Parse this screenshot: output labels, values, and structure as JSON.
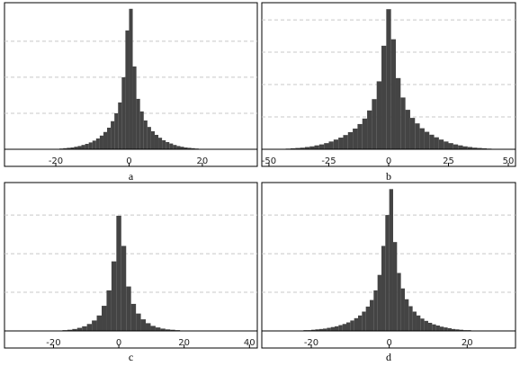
{
  "chart_data": [
    {
      "type": "histogram",
      "caption": "a",
      "color": "#444444",
      "grid": true,
      "bins": [
        -20,
        -19,
        -18,
        -17,
        -16,
        -15,
        -14,
        -13,
        -12,
        -11,
        -10,
        -9,
        -8,
        -7,
        -6,
        -5,
        -4,
        -3,
        -2,
        -1,
        0,
        1,
        2,
        3,
        4,
        5,
        6,
        7,
        8,
        9,
        10,
        11,
        12,
        13,
        14,
        15,
        16,
        17,
        18,
        19,
        20
      ],
      "values": [
        0.01,
        0.02,
        0.03,
        0.04,
        0.05,
        0.07,
        0.09,
        0.12,
        0.15,
        0.19,
        0.24,
        0.3,
        0.38,
        0.48,
        0.6,
        0.78,
        1.0,
        1.3,
        2.0,
        3.3,
        3.9,
        2.3,
        1.4,
        1.05,
        0.8,
        0.62,
        0.5,
        0.4,
        0.32,
        0.25,
        0.2,
        0.16,
        0.12,
        0.09,
        0.07,
        0.05,
        0.04,
        0.03,
        0.02,
        0.01
      ],
      "xlim": [
        -34,
        35
      ],
      "xticks": [
        -20,
        0,
        20
      ],
      "ylim": [
        0,
        4.07
      ],
      "yticks": [
        1,
        2,
        3
      ]
    },
    {
      "type": "histogram",
      "caption": "b",
      "color": "#444444",
      "grid": true,
      "bins": [
        -45,
        -43,
        -41,
        -39,
        -37,
        -35,
        -33,
        -31,
        -29,
        -27,
        -25,
        -23,
        -21,
        -19,
        -17,
        -15,
        -13,
        -11,
        -9,
        -7,
        -5,
        -3,
        -1,
        1,
        3,
        5,
        7,
        9,
        11,
        13,
        15,
        17,
        19,
        21,
        23,
        25,
        27,
        29,
        31,
        33,
        35,
        37,
        39,
        41,
        43,
        45
      ],
      "values": [
        0.01,
        0.02,
        0.03,
        0.04,
        0.05,
        0.07,
        0.09,
        0.12,
        0.15,
        0.19,
        0.24,
        0.3,
        0.36,
        0.44,
        0.53,
        0.64,
        0.78,
        0.95,
        1.2,
        1.55,
        2.1,
        3.2,
        4.33,
        3.4,
        2.2,
        1.6,
        1.22,
        0.97,
        0.8,
        0.65,
        0.54,
        0.45,
        0.37,
        0.3,
        0.24,
        0.19,
        0.15,
        0.12,
        0.09,
        0.07,
        0.05,
        0.04,
        0.03,
        0.02,
        0.01
      ],
      "xlim": [
        -53,
        53
      ],
      "xticks": [
        -50,
        -25,
        0,
        25,
        50
      ],
      "ylim": [
        0,
        4.53
      ],
      "yticks": [
        1,
        2,
        3,
        4
      ]
    },
    {
      "type": "histogram",
      "caption": "c",
      "color": "#444444",
      "grid": true,
      "bins": [
        -18.75,
        -17.25,
        -15.75,
        -14.25,
        -12.75,
        -11.25,
        -9.75,
        -8.25,
        -6.75,
        -5.25,
        -3.75,
        -2.25,
        -0.75,
        0.75,
        2.25,
        3.75,
        5.25,
        6.75,
        8.25,
        9.75,
        11.25,
        12.75,
        14.25,
        15.75,
        17.25,
        18.75,
        20.25,
        21.75
      ],
      "values": [
        0.01,
        0.02,
        0.03,
        0.05,
        0.08,
        0.12,
        0.18,
        0.27,
        0.4,
        0.65,
        1.05,
        1.8,
        2.98,
        2.2,
        1.15,
        0.7,
        0.45,
        0.3,
        0.2,
        0.13,
        0.09,
        0.06,
        0.04,
        0.03,
        0.02,
        0.01,
        0.01
      ],
      "xlim": [
        -35,
        42.4
      ],
      "xticks": [
        -20,
        0,
        20,
        40
      ],
      "ylim": [
        0,
        3.84
      ],
      "yticks": [
        1,
        2,
        3
      ]
    },
    {
      "type": "histogram",
      "caption": "d",
      "color": "#444444",
      "grid": true,
      "bins": [
        -24,
        -23,
        -22,
        -21,
        -20,
        -19,
        -18,
        -17,
        -16,
        -15,
        -14,
        -13,
        -12,
        -11,
        -10,
        -9,
        -8,
        -7,
        -6,
        -5,
        -4,
        -3,
        -2,
        -1,
        0,
        1,
        2,
        3,
        4,
        5,
        6,
        7,
        8,
        9,
        10,
        11,
        12,
        13,
        14,
        15,
        16,
        17,
        18,
        19,
        20,
        21,
        22,
        23,
        24
      ],
      "values": [
        0.01,
        0.01,
        0.02,
        0.02,
        0.03,
        0.04,
        0.05,
        0.06,
        0.08,
        0.1,
        0.12,
        0.15,
        0.18,
        0.22,
        0.27,
        0.33,
        0.4,
        0.5,
        0.63,
        0.8,
        1.05,
        1.45,
        2.2,
        3.0,
        3.67,
        2.3,
        1.5,
        1.1,
        0.82,
        0.64,
        0.5,
        0.4,
        0.32,
        0.26,
        0.21,
        0.17,
        0.14,
        0.11,
        0.09,
        0.07,
        0.05,
        0.04,
        0.03,
        0.02,
        0.02,
        0.01,
        0.01,
        0.01
      ],
      "xlim": [
        -32.7,
        32.4
      ],
      "xticks": [
        -20,
        0,
        20
      ],
      "ylim": [
        0,
        3.84
      ],
      "yticks": [
        1,
        2,
        3
      ]
    }
  ]
}
